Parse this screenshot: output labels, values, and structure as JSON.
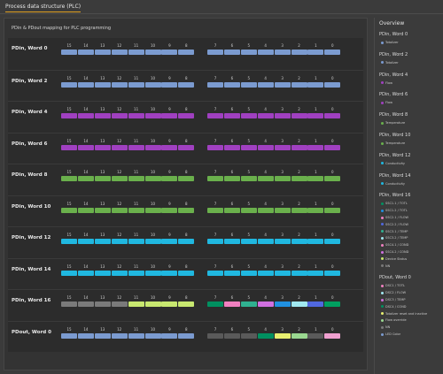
{
  "tab": {
    "label": "Process data structure (PLC)"
  },
  "main": {
    "title": "PDin & PDout mapping for PLC programming"
  },
  "bit_labels_hi": [
    "15",
    "14",
    "13",
    "12",
    "11",
    "10",
    "9",
    "8"
  ],
  "bit_labels_lo": [
    "7",
    "6",
    "5",
    "4",
    "3",
    "2",
    "1",
    "0"
  ],
  "colors": {
    "totalizer": "#7b9bd0",
    "flow": "#a040c0",
    "temperature": "#6ab04c",
    "conductivity": "#20b8e0",
    "gray": "#7a7a7a",
    "s1_totl": "#009060",
    "s2_flow": "#f080c0",
    "s3_temp": "#30b090",
    "s4_cond": "#d070e0",
    "s1_flow": "#2090e0",
    "s2_temp": "#a0e8f0",
    "s3_cond": "#5068e0",
    "s4_totl": "#00a060",
    "sensor_status": "#c8e870",
    "nn": "#7a7a7a",
    "dark_gray": "#5a5a5a",
    "yellow": "#e8f070",
    "lightgreen": "#9ad890",
    "pink": "#f0a0d0"
  },
  "rows": [
    {
      "label": "PDin, Word 0",
      "hi": [
        "totalizer",
        "totalizer",
        "totalizer",
        "totalizer",
        "totalizer",
        "totalizer",
        "totalizer",
        "totalizer"
      ],
      "lo": [
        "totalizer",
        "totalizer",
        "totalizer",
        "totalizer",
        "totalizer",
        "totalizer",
        "totalizer",
        "totalizer"
      ]
    },
    {
      "label": "PDin, Word 2",
      "hi": [
        "totalizer",
        "totalizer",
        "totalizer",
        "totalizer",
        "totalizer",
        "totalizer",
        "totalizer",
        "totalizer"
      ],
      "lo": [
        "totalizer",
        "totalizer",
        "totalizer",
        "totalizer",
        "totalizer",
        "totalizer",
        "totalizer",
        "totalizer"
      ]
    },
    {
      "label": "PDin, Word 4",
      "hi": [
        "flow",
        "flow",
        "flow",
        "flow",
        "flow",
        "flow",
        "flow",
        "flow"
      ],
      "lo": [
        "flow",
        "flow",
        "flow",
        "flow",
        "flow",
        "flow",
        "flow",
        "flow"
      ]
    },
    {
      "label": "PDin, Word 6",
      "hi": [
        "flow",
        "flow",
        "flow",
        "flow",
        "flow",
        "flow",
        "flow",
        "flow"
      ],
      "lo": [
        "flow",
        "flow",
        "flow",
        "flow",
        "flow",
        "flow",
        "flow",
        "flow"
      ]
    },
    {
      "label": "PDin, Word 8",
      "hi": [
        "temperature",
        "temperature",
        "temperature",
        "temperature",
        "temperature",
        "temperature",
        "temperature",
        "temperature"
      ],
      "lo": [
        "temperature",
        "temperature",
        "temperature",
        "temperature",
        "temperature",
        "temperature",
        "temperature",
        "temperature"
      ]
    },
    {
      "label": "PDin, Word 10",
      "hi": [
        "temperature",
        "temperature",
        "temperature",
        "temperature",
        "temperature",
        "temperature",
        "temperature",
        "temperature"
      ],
      "lo": [
        "temperature",
        "temperature",
        "temperature",
        "temperature",
        "temperature",
        "temperature",
        "temperature",
        "temperature"
      ]
    },
    {
      "label": "PDin, Word 12",
      "hi": [
        "conductivity",
        "conductivity",
        "conductivity",
        "conductivity",
        "conductivity",
        "conductivity",
        "conductivity",
        "conductivity"
      ],
      "lo": [
        "conductivity",
        "conductivity",
        "conductivity",
        "conductivity",
        "conductivity",
        "conductivity",
        "conductivity",
        "conductivity"
      ]
    },
    {
      "label": "PDin, Word 14",
      "hi": [
        "conductivity",
        "conductivity",
        "conductivity",
        "conductivity",
        "conductivity",
        "conductivity",
        "conductivity",
        "conductivity"
      ],
      "lo": [
        "conductivity",
        "conductivity",
        "conductivity",
        "conductivity",
        "conductivity",
        "conductivity",
        "conductivity",
        "conductivity"
      ]
    },
    {
      "label": "PDin, Word 16",
      "hi": [
        "gray",
        "gray",
        "gray",
        "gray",
        "sensor_status",
        "sensor_status",
        "sensor_status",
        "sensor_status"
      ],
      "lo": [
        "s1_totl",
        "s2_flow",
        "s3_temp",
        "s4_cond",
        "s1_flow",
        "s2_temp",
        "s3_cond",
        "s4_totl"
      ]
    },
    {
      "label": "PDout, Word 0",
      "hi": [
        "totalizer",
        "totalizer",
        "totalizer",
        "totalizer",
        "totalizer",
        "totalizer",
        "totalizer",
        "totalizer"
      ],
      "lo": [
        "dark_gray",
        "dark_gray",
        "dark_gray",
        "s1_totl",
        "yellow",
        "lightgreen",
        "dark_gray",
        "pink"
      ]
    }
  ],
  "overview": {
    "title": "Overview",
    "sections": [
      {
        "title": "PDin, Word 0",
        "items": [
          {
            "label": "Totalizer",
            "color": "totalizer"
          }
        ]
      },
      {
        "title": "PDin, Word 2",
        "items": [
          {
            "label": "Totalizer",
            "color": "totalizer"
          }
        ]
      },
      {
        "title": "PDin, Word 4",
        "items": [
          {
            "label": "Flow",
            "color": "flow"
          }
        ]
      },
      {
        "title": "PDin, Word 6",
        "items": [
          {
            "label": "Flow",
            "color": "flow"
          }
        ]
      },
      {
        "title": "PDin, Word 8",
        "items": [
          {
            "label": "Temperature",
            "color": "temperature"
          }
        ]
      },
      {
        "title": "PDin, Word 10",
        "items": [
          {
            "label": "Temperature",
            "color": "temperature"
          }
        ]
      },
      {
        "title": "PDin, Word 12",
        "items": [
          {
            "label": "Conductivity",
            "color": "conductivity"
          }
        ]
      },
      {
        "title": "PDin, Word 14",
        "items": [
          {
            "label": "Conductivity",
            "color": "conductivity"
          }
        ]
      },
      {
        "title": "PDin, Word 16",
        "items": [
          {
            "label": "SSC1.1 / TOTL",
            "color": "s1_totl"
          },
          {
            "label": "SSC1.2 / TOTL",
            "color": "s1_flow"
          },
          {
            "label": "SSC2.1 / FLOW",
            "color": "s2_flow"
          },
          {
            "label": "SSC2.2 / FLOW",
            "color": "s3_cond"
          },
          {
            "label": "SSC3.1 / TEMP",
            "color": "s3_temp"
          },
          {
            "label": "SSC3.2 / TEMP",
            "color": "s2_temp"
          },
          {
            "label": "SSC4.1 / COND",
            "color": "s2_flow"
          },
          {
            "label": "SSC4.2 / COND",
            "color": "s4_cond"
          },
          {
            "label": "Device Status",
            "color": "sensor_status"
          },
          {
            "label": "NN",
            "color": "nn"
          }
        ]
      },
      {
        "title": "PDout, Word 0",
        "items": [
          {
            "label": "DSC1 / TOTL",
            "color": "s2_flow"
          },
          {
            "label": "DSC2 / FLOW",
            "color": "s2_temp"
          },
          {
            "label": "DSC3 / TEMP",
            "color": "s4_cond"
          },
          {
            "label": "DSC4 / COND",
            "color": "s1_totl"
          },
          {
            "label": "Totalizer reset and inactive",
            "color": "yellow"
          },
          {
            "label": "Flow override",
            "color": "lightgreen"
          },
          {
            "label": "NN",
            "color": "nn"
          },
          {
            "label": "LED Color",
            "color": "totalizer"
          }
        ]
      }
    ]
  }
}
